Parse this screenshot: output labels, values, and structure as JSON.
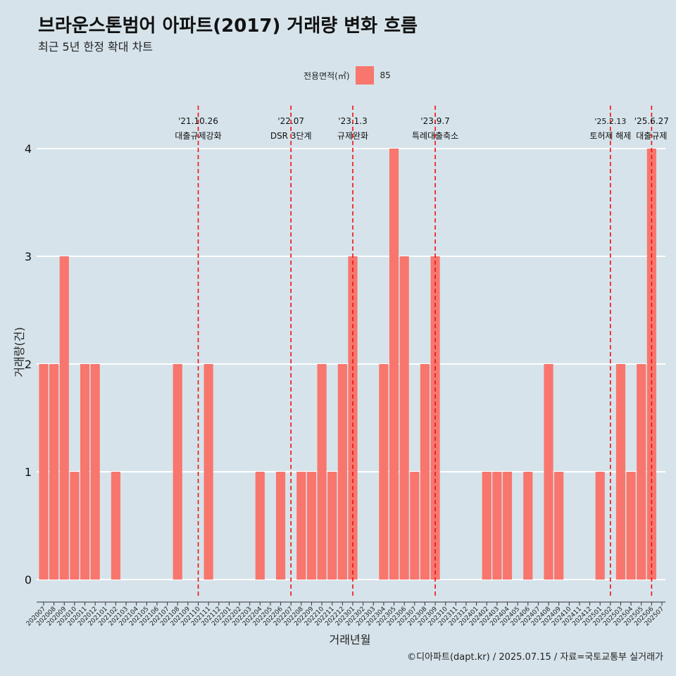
{
  "header": {
    "title": "브라운스톤범어 아파트(2017) 거래량 변화 흐름",
    "subtitle": "최근 5년 한정 확대 차트"
  },
  "legend": {
    "title": "전용면적(㎡)",
    "label": "85",
    "color": "#f8766d"
  },
  "caption": "©디아파트(dapt.kr) / 2025.07.15 / 자료=국토교통부 실거래가",
  "chart_data": {
    "type": "bar",
    "xlabel": "거래년월",
    "ylabel": "거래량(건)",
    "ylim": [
      0,
      4
    ],
    "yticks": [
      0,
      1,
      2,
      3,
      4
    ],
    "grid": true,
    "bar_color": "#f8766d",
    "categories": [
      "202007",
      "202008",
      "202009",
      "202010",
      "202011",
      "202012",
      "202101",
      "202102",
      "202103",
      "202104",
      "202105",
      "202106",
      "202107",
      "202108",
      "202109",
      "202110",
      "202111",
      "202112",
      "202201",
      "202202",
      "202203",
      "202204",
      "202205",
      "202206",
      "202207",
      "202208",
      "202209",
      "202210",
      "202211",
      "202212",
      "202301",
      "202302",
      "202303",
      "202304",
      "202305",
      "202306",
      "202307",
      "202308",
      "202309",
      "202310",
      "202311",
      "202312",
      "202401",
      "202402",
      "202403",
      "202404",
      "202405",
      "202406",
      "202407",
      "202408",
      "202409",
      "202410",
      "202411",
      "202412",
      "202501",
      "202502",
      "202503",
      "202504",
      "202505",
      "202506",
      "202507"
    ],
    "series": [
      {
        "name": "85",
        "values": [
          2,
          2,
          3,
          1,
          2,
          2,
          0,
          1,
          0,
          0,
          0,
          0,
          0,
          2,
          0,
          0,
          2,
          0,
          0,
          0,
          0,
          1,
          0,
          1,
          0,
          1,
          1,
          2,
          1,
          2,
          3,
          0,
          0,
          2,
          4,
          3,
          1,
          2,
          3,
          0,
          0,
          0,
          0,
          1,
          1,
          1,
          0,
          1,
          0,
          2,
          1,
          0,
          0,
          0,
          1,
          0,
          2,
          1,
          2,
          4,
          0
        ]
      }
    ],
    "events": [
      {
        "date": "'21.10.26",
        "label": "대출규제강화",
        "x": "202110"
      },
      {
        "date": "'22.07",
        "label": "DSR 3단계",
        "x": "202207"
      },
      {
        "date": "'23.1.3",
        "label": "규제완화",
        "x": "202301"
      },
      {
        "date": "'23.9.7",
        "label": "특례대출축소",
        "x": "202309"
      },
      {
        "date": "'25.2.13",
        "label": "토허제 해제",
        "x": "202502"
      },
      {
        "date": "'25.6.27",
        "label": "대출규제",
        "x": "202506"
      }
    ]
  }
}
